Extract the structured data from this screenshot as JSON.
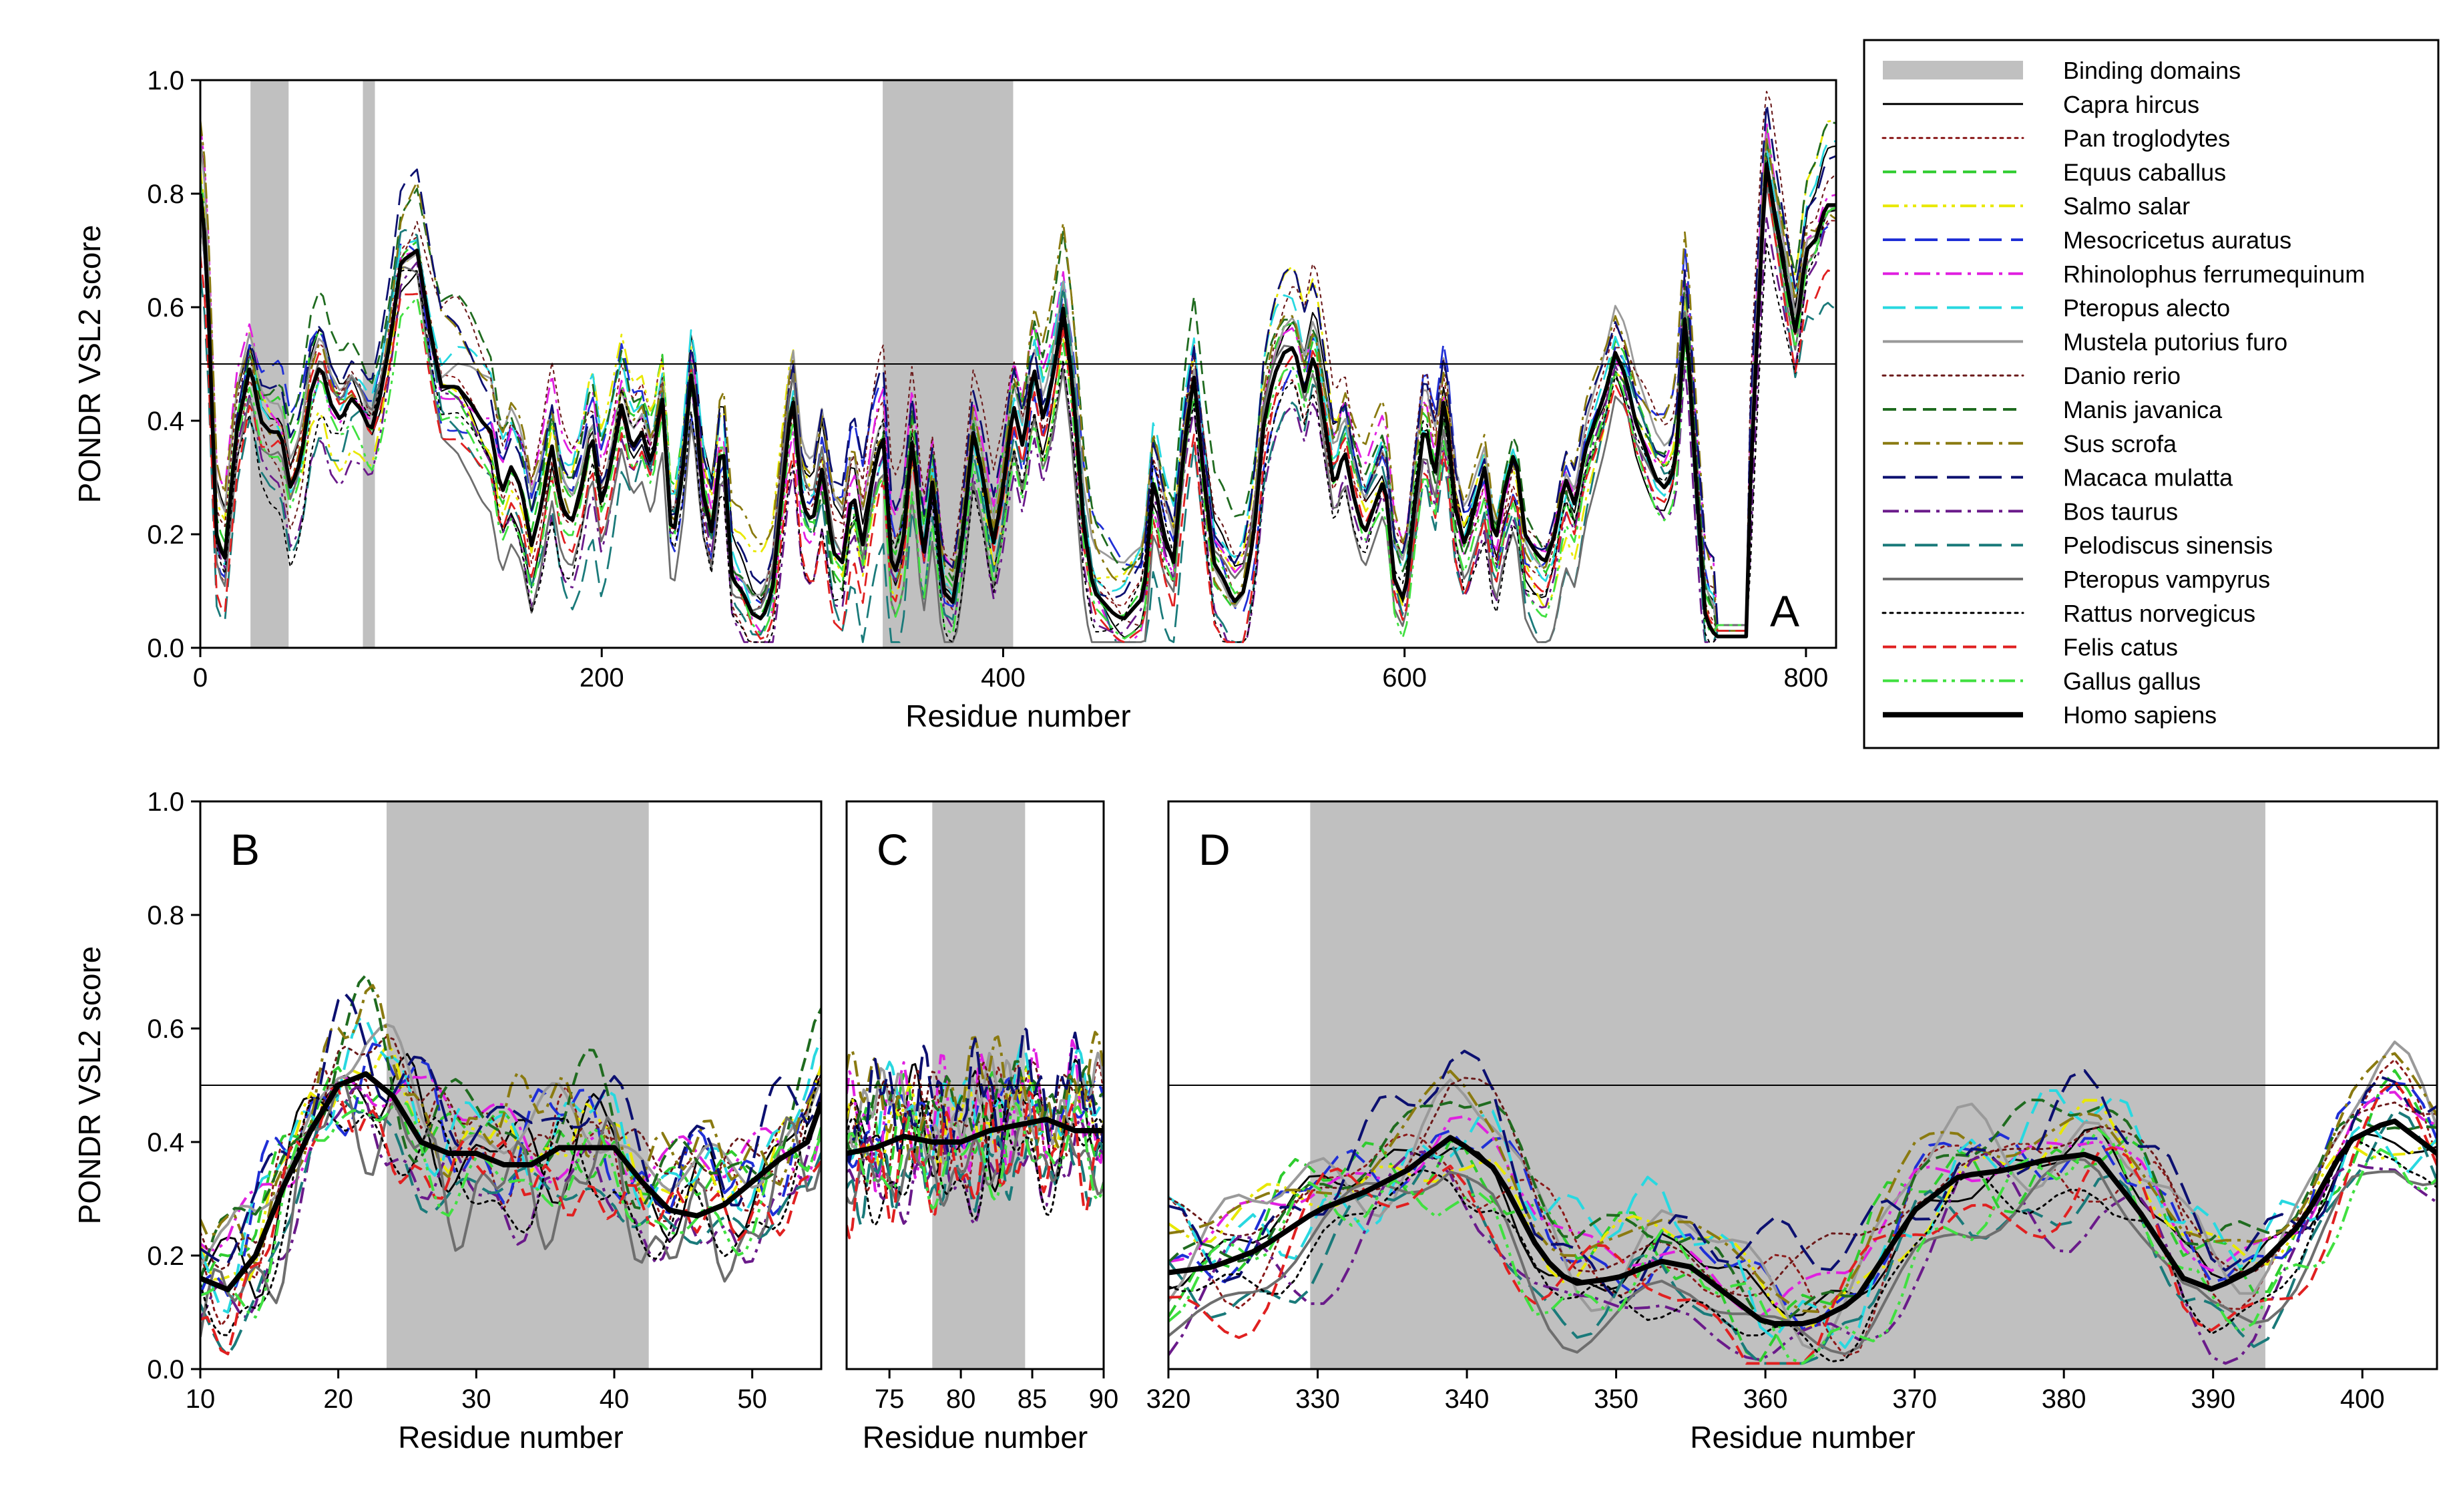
{
  "figure": {
    "legend_band_label": "Binding domains",
    "threshold": 0.5
  },
  "legend": [
    {
      "name": "Capra hircus",
      "color": "#000000",
      "dash": "solid",
      "width": 3
    },
    {
      "name": "Pan troglodytes",
      "color": "#8b1a1a",
      "dash": "dot",
      "width": 3
    },
    {
      "name": "Equus caballus",
      "color": "#2ecc2e",
      "dash": "dash",
      "width": 4
    },
    {
      "name": "Salmo salar",
      "color": "#e8e800",
      "dash": "dashdotdot",
      "width": 4
    },
    {
      "name": "Mesocricetus auratus",
      "color": "#1f2fd6",
      "dash": "longdash",
      "width": 4
    },
    {
      "name": "Rhinolophus ferrumequinum",
      "color": "#e020e0",
      "dash": "dashdot",
      "width": 4
    },
    {
      "name": "Pteropus alecto",
      "color": "#28d8e0",
      "dash": "longdash",
      "width": 4
    },
    {
      "name": "Mustela putorius furo",
      "color": "#9a9a9a",
      "dash": "solid",
      "width": 4
    },
    {
      "name": "Danio rerio",
      "color": "#6b1a1a",
      "dash": "dot",
      "width": 3
    },
    {
      "name": "Manis javanica",
      "color": "#1f6b1f",
      "dash": "dash",
      "width": 4
    },
    {
      "name": "Sus scrofa",
      "color": "#8a7a10",
      "dash": "dashdot",
      "width": 4
    },
    {
      "name": "Macaca mulatta",
      "color": "#0c1070",
      "dash": "longdash",
      "width": 4
    },
    {
      "name": "Bos taurus",
      "color": "#6a1a8a",
      "dash": "dashdot",
      "width": 4
    },
    {
      "name": "Pelodiscus sinensis",
      "color": "#1a7a7a",
      "dash": "longdash",
      "width": 4
    },
    {
      "name": "Pteropus vampyrus",
      "color": "#6e6e6e",
      "dash": "solid",
      "width": 4
    },
    {
      "name": "Rattus norvegicus",
      "color": "#000000",
      "dash": "dot",
      "width": 3
    },
    {
      "name": "Felis catus",
      "color": "#e02020",
      "dash": "dash",
      "width": 4
    },
    {
      "name": "Gallus gallus",
      "color": "#40e040",
      "dash": "dashdotdot",
      "width": 4
    },
    {
      "name": "Homo sapiens",
      "color": "#000000",
      "dash": "solid",
      "width": 8
    }
  ],
  "chart_data": [
    {
      "panel_label": "A",
      "type": "line",
      "xlabel": "Residue number",
      "ylabel": "PONDR VSL2 score",
      "xlim": [
        0,
        815
      ],
      "ylim": [
        0,
        1
      ],
      "xticks": [
        0,
        200,
        400,
        600,
        800
      ],
      "yticks": [
        "0.0",
        "0.2",
        "0.4",
        "0.6",
        "0.8",
        "1.0"
      ],
      "binding_domains": [
        [
          25,
          44
        ],
        [
          81,
          87
        ],
        [
          340,
          405
        ]
      ],
      "series_summary": "19 species traces, values approximated",
      "human_profile": [
        [
          0,
          0.8
        ],
        [
          3,
          0.7
        ],
        [
          8,
          0.2
        ],
        [
          12,
          0.15
        ],
        [
          18,
          0.38
        ],
        [
          25,
          0.5
        ],
        [
          30,
          0.4
        ],
        [
          35,
          0.38
        ],
        [
          40,
          0.38
        ],
        [
          45,
          0.28
        ],
        [
          50,
          0.33
        ],
        [
          55,
          0.45
        ],
        [
          60,
          0.5
        ],
        [
          65,
          0.43
        ],
        [
          70,
          0.4
        ],
        [
          75,
          0.44
        ],
        [
          80,
          0.42
        ],
        [
          85,
          0.38
        ],
        [
          90,
          0.45
        ],
        [
          95,
          0.55
        ],
        [
          100,
          0.68
        ],
        [
          108,
          0.7
        ],
        [
          115,
          0.55
        ],
        [
          120,
          0.46
        ],
        [
          128,
          0.46
        ],
        [
          135,
          0.43
        ],
        [
          140,
          0.4
        ],
        [
          145,
          0.38
        ],
        [
          150,
          0.27
        ],
        [
          155,
          0.32
        ],
        [
          160,
          0.28
        ],
        [
          165,
          0.18
        ],
        [
          170,
          0.25
        ],
        [
          175,
          0.36
        ],
        [
          180,
          0.25
        ],
        [
          185,
          0.22
        ],
        [
          190,
          0.28
        ],
        [
          195,
          0.38
        ],
        [
          200,
          0.25
        ],
        [
          205,
          0.33
        ],
        [
          210,
          0.43
        ],
        [
          215,
          0.35
        ],
        [
          220,
          0.38
        ],
        [
          225,
          0.32
        ],
        [
          230,
          0.45
        ],
        [
          235,
          0.18
        ],
        [
          240,
          0.3
        ],
        [
          245,
          0.5
        ],
        [
          250,
          0.28
        ],
        [
          255,
          0.2
        ],
        [
          260,
          0.38
        ],
        [
          265,
          0.12
        ],
        [
          270,
          0.1
        ],
        [
          275,
          0.06
        ],
        [
          280,
          0.05
        ],
        [
          285,
          0.1
        ],
        [
          290,
          0.28
        ],
        [
          295,
          0.45
        ],
        [
          300,
          0.25
        ],
        [
          305,
          0.22
        ],
        [
          310,
          0.32
        ],
        [
          315,
          0.17
        ],
        [
          320,
          0.15
        ],
        [
          325,
          0.28
        ],
        [
          330,
          0.18
        ],
        [
          335,
          0.3
        ],
        [
          340,
          0.38
        ],
        [
          345,
          0.12
        ],
        [
          350,
          0.18
        ],
        [
          355,
          0.38
        ],
        [
          360,
          0.15
        ],
        [
          365,
          0.3
        ],
        [
          370,
          0.1
        ],
        [
          375,
          0.08
        ],
        [
          380,
          0.2
        ],
        [
          385,
          0.38
        ],
        [
          390,
          0.3
        ],
        [
          395,
          0.18
        ],
        [
          400,
          0.28
        ],
        [
          405,
          0.43
        ],
        [
          410,
          0.35
        ],
        [
          415,
          0.5
        ],
        [
          420,
          0.4
        ],
        [
          425,
          0.48
        ],
        [
          430,
          0.6
        ],
        [
          435,
          0.45
        ],
        [
          440,
          0.22
        ],
        [
          445,
          0.1
        ],
        [
          450,
          0.08
        ],
        [
          455,
          0.06
        ],
        [
          460,
          0.05
        ],
        [
          470,
          0.09
        ],
        [
          475,
          0.3
        ],
        [
          480,
          0.2
        ],
        [
          485,
          0.15
        ],
        [
          490,
          0.35
        ],
        [
          495,
          0.48
        ],
        [
          500,
          0.3
        ],
        [
          505,
          0.15
        ],
        [
          510,
          0.12
        ],
        [
          515,
          0.08
        ],
        [
          520,
          0.1
        ],
        [
          525,
          0.2
        ],
        [
          530,
          0.4
        ],
        [
          535,
          0.48
        ],
        [
          540,
          0.52
        ],
        [
          545,
          0.53
        ],
        [
          550,
          0.45
        ],
        [
          555,
          0.52
        ],
        [
          560,
          0.4
        ],
        [
          565,
          0.28
        ],
        [
          570,
          0.35
        ],
        [
          575,
          0.26
        ],
        [
          580,
          0.2
        ],
        [
          585,
          0.25
        ],
        [
          590,
          0.3
        ],
        [
          595,
          0.12
        ],
        [
          600,
          0.08
        ],
        [
          605,
          0.25
        ],
        [
          610,
          0.4
        ],
        [
          615,
          0.3
        ],
        [
          620,
          0.45
        ],
        [
          625,
          0.25
        ],
        [
          630,
          0.18
        ],
        [
          635,
          0.25
        ],
        [
          640,
          0.32
        ],
        [
          645,
          0.18
        ],
        [
          650,
          0.28
        ],
        [
          655,
          0.35
        ],
        [
          660,
          0.2
        ],
        [
          665,
          0.17
        ],
        [
          670,
          0.15
        ],
        [
          675,
          0.2
        ],
        [
          680,
          0.3
        ],
        [
          685,
          0.25
        ],
        [
          690,
          0.35
        ],
        [
          695,
          0.4
        ],
        [
          700,
          0.45
        ],
        [
          705,
          0.52
        ],
        [
          710,
          0.48
        ],
        [
          715,
          0.4
        ],
        [
          720,
          0.35
        ],
        [
          725,
          0.3
        ],
        [
          730,
          0.28
        ],
        [
          735,
          0.32
        ],
        [
          740,
          0.6
        ],
        [
          745,
          0.3
        ],
        [
          750,
          0.05
        ],
        [
          755,
          0.02
        ],
        [
          760,
          0.02
        ],
        [
          765,
          0.02
        ],
        [
          770,
          0.1
        ],
        [
          775,
          0.5
        ],
        [
          780,
          0.86
        ],
        [
          785,
          0.75
        ],
        [
          790,
          0.65
        ],
        [
          795,
          0.55
        ],
        [
          800,
          0.7
        ],
        [
          805,
          0.72
        ],
        [
          810,
          0.78
        ]
      ]
    },
    {
      "panel_label": "B",
      "type": "line",
      "xlabel": "Residue number",
      "ylabel": "PONDR VSL2 score",
      "xlim": [
        10,
        55
      ],
      "ylim": [
        0,
        1
      ],
      "xticks": [
        10,
        20,
        30,
        40,
        50
      ],
      "yticks": [
        "0.0",
        "0.2",
        "0.4",
        "0.6",
        "0.8",
        "1.0"
      ],
      "binding_domains": [
        [
          23.5,
          42.5
        ]
      ],
      "human_profile": [
        [
          10,
          0.16
        ],
        [
          12,
          0.14
        ],
        [
          14,
          0.2
        ],
        [
          16,
          0.32
        ],
        [
          18,
          0.42
        ],
        [
          20,
          0.5
        ],
        [
          22,
          0.52
        ],
        [
          24,
          0.48
        ],
        [
          26,
          0.4
        ],
        [
          28,
          0.38
        ],
        [
          30,
          0.38
        ],
        [
          32,
          0.36
        ],
        [
          34,
          0.36
        ],
        [
          36,
          0.39
        ],
        [
          38,
          0.39
        ],
        [
          40,
          0.39
        ],
        [
          42,
          0.33
        ],
        [
          44,
          0.28
        ],
        [
          46,
          0.27
        ],
        [
          48,
          0.29
        ],
        [
          50,
          0.33
        ],
        [
          52,
          0.37
        ],
        [
          54,
          0.4
        ],
        [
          55,
          0.47
        ]
      ]
    },
    {
      "panel_label": "C",
      "type": "line",
      "xlabel": "Residue number",
      "ylabel": "",
      "xlim": [
        72,
        90
      ],
      "ylim": [
        0,
        1
      ],
      "xticks": [
        75,
        80,
        85,
        90
      ],
      "yticks": [],
      "binding_domains": [
        [
          78,
          84.5
        ]
      ],
      "human_profile": [
        [
          72,
          0.38
        ],
        [
          74,
          0.39
        ],
        [
          76,
          0.41
        ],
        [
          78,
          0.4
        ],
        [
          80,
          0.4
        ],
        [
          82,
          0.42
        ],
        [
          84,
          0.43
        ],
        [
          86,
          0.44
        ],
        [
          88,
          0.42
        ],
        [
          90,
          0.42
        ]
      ]
    },
    {
      "panel_label": "D",
      "type": "line",
      "xlabel": "Residue number",
      "ylabel": "",
      "xlim": [
        320,
        405
      ],
      "ylim": [
        0,
        1
      ],
      "xticks": [
        320,
        330,
        340,
        350,
        360,
        370,
        380,
        390,
        400
      ],
      "yticks": [],
      "binding_domains": [
        [
          329.5,
          393.5
        ]
      ],
      "human_profile": [
        [
          320,
          0.17
        ],
        [
          323,
          0.18
        ],
        [
          326,
          0.21
        ],
        [
          330,
          0.28
        ],
        [
          333,
          0.31
        ],
        [
          336,
          0.35
        ],
        [
          339,
          0.41
        ],
        [
          342,
          0.35
        ],
        [
          345,
          0.2
        ],
        [
          347,
          0.15
        ],
        [
          350,
          0.16
        ],
        [
          353,
          0.19
        ],
        [
          355,
          0.18
        ],
        [
          357,
          0.14
        ],
        [
          360,
          0.08
        ],
        [
          363,
          0.08
        ],
        [
          366,
          0.12
        ],
        [
          368,
          0.2
        ],
        [
          370,
          0.28
        ],
        [
          373,
          0.34
        ],
        [
          376,
          0.35
        ],
        [
          379,
          0.37
        ],
        [
          382,
          0.38
        ],
        [
          385,
          0.28
        ],
        [
          388,
          0.16
        ],
        [
          390,
          0.14
        ],
        [
          393,
          0.18
        ],
        [
          396,
          0.26
        ],
        [
          399,
          0.4
        ],
        [
          402,
          0.44
        ],
        [
          405,
          0.38
        ]
      ]
    }
  ]
}
